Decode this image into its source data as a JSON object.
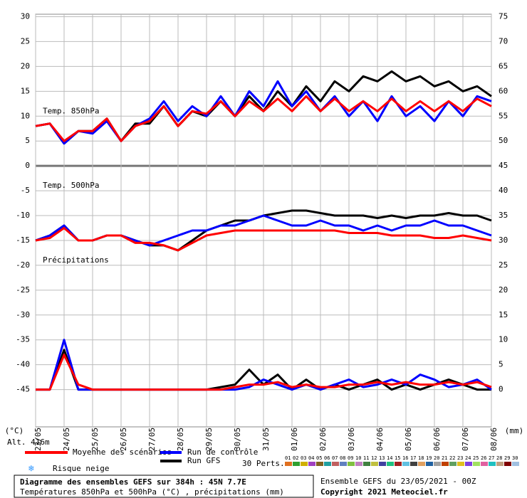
{
  "chart_data": {
    "type": "line",
    "x": [
      0,
      12,
      24,
      36,
      48,
      60,
      72,
      84,
      96,
      108,
      120,
      132,
      144,
      156,
      168,
      180,
      192,
      204,
      216,
      228,
      240,
      252,
      264,
      276,
      288,
      300,
      312,
      324,
      336,
      348,
      360,
      372,
      384
    ],
    "xlim": [
      0,
      384
    ],
    "xticks": [
      {
        "value": 0,
        "label": "23/05"
      },
      {
        "value": 24,
        "label": "24/05"
      },
      {
        "value": 48,
        "label": "25/05"
      },
      {
        "value": 72,
        "label": "26/05"
      },
      {
        "value": 96,
        "label": "27/05"
      },
      {
        "value": 120,
        "label": "28/05"
      },
      {
        "value": 144,
        "label": "29/05"
      },
      {
        "value": 168,
        "label": "30/05"
      },
      {
        "value": 192,
        "label": "31/05"
      },
      {
        "value": 216,
        "label": "01/06"
      },
      {
        "value": 240,
        "label": "02/06"
      },
      {
        "value": 264,
        "label": "03/06"
      },
      {
        "value": 288,
        "label": "04/06"
      },
      {
        "value": 312,
        "label": "05/06"
      },
      {
        "value": 336,
        "label": "06/06"
      },
      {
        "value": 360,
        "label": "07/06"
      },
      {
        "value": 384,
        "label": "08/06"
      }
    ],
    "ylim": [
      -52.5,
      30.5
    ],
    "yticks": [
      30,
      25,
      20,
      15,
      10,
      5,
      0,
      -5,
      -10,
      -15,
      -20,
      -25,
      -30,
      -35,
      -40,
      -45
    ],
    "y2lim": [
      -7.5,
      75.5
    ],
    "y2ticks": [
      75,
      70,
      65,
      60,
      55,
      50,
      45,
      40,
      35,
      30,
      25,
      20,
      15,
      10,
      5,
      0
    ],
    "grid": true,
    "ylabel": "(°C)",
    "y2label": "(mm)",
    "altitude": "Alt. 416m",
    "panels": [
      {
        "label": "Temp. 850hPa"
      },
      {
        "label": "Temp. 500hPa"
      },
      {
        "label": "Précipitations",
        "axis": "y2"
      }
    ],
    "series": [
      {
        "name": "Moyenne des scénarios",
        "color": "#ff0000",
        "values": [
          [
            8,
            8.5,
            5,
            7,
            7,
            9.5,
            5,
            8,
            9,
            12,
            8,
            11,
            10.5,
            13,
            10,
            13,
            11,
            13.5,
            11,
            14,
            11,
            13.5,
            11,
            13,
            11,
            13.5,
            11,
            13,
            11,
            13,
            11,
            13.5,
            12
          ],
          [
            -15,
            -14.5,
            -12.5,
            -15,
            -15,
            -14,
            -14,
            -15.5,
            -15.5,
            -16,
            -17,
            -15.5,
            -14,
            -13.5,
            -13,
            -13,
            -13,
            -13,
            -13,
            -13,
            -13,
            -13,
            -13.5,
            -13.5,
            -13.5,
            -14,
            -14,
            -14,
            -14.5,
            -14.5,
            -14,
            -14.5,
            -15
          ],
          [
            0,
            0,
            7,
            1,
            0,
            0,
            0,
            0,
            0,
            0,
            0,
            0,
            0,
            0,
            0.5,
            1,
            1,
            1.5,
            0.5,
            1,
            0.5,
            0.5,
            1,
            1,
            1.5,
            1,
            1.5,
            1,
            1,
            1.5,
            1,
            1.5,
            0.5
          ]
        ]
      },
      {
        "name": "Run de contrôle",
        "color": "#0000ff",
        "values": [
          [
            8,
            8.5,
            4.5,
            7,
            6.5,
            9,
            5,
            8,
            9.5,
            13,
            9,
            12,
            10,
            14,
            10,
            15,
            12,
            17,
            12,
            15,
            11,
            14,
            10,
            13,
            9,
            14,
            10,
            12,
            9,
            13,
            10,
            14,
            13
          ],
          [
            -15,
            -14,
            -12,
            -15,
            -15,
            -14,
            -14,
            -15,
            -16,
            -15,
            -14,
            -13,
            -13,
            -12,
            -12,
            -11,
            -10,
            -11,
            -12,
            -12,
            -11,
            -12,
            -12,
            -13,
            -12,
            -13,
            -12,
            -12,
            -11,
            -12,
            -12,
            -13,
            -14
          ],
          [
            0,
            0,
            10,
            0,
            0,
            0,
            0,
            0,
            0,
            0,
            0,
            0,
            0,
            0,
            0,
            0.5,
            2,
            1,
            0,
            1,
            0,
            1,
            2,
            0.5,
            1,
            2,
            1,
            3,
            2,
            0.5,
            1,
            2,
            0
          ]
        ]
      },
      {
        "name": "Run GFS",
        "color": "#000000",
        "values": [
          [
            8,
            8.5,
            4.5,
            7,
            7,
            9.5,
            5,
            8.5,
            8.5,
            12,
            8,
            11,
            10,
            13,
            10,
            14,
            11,
            15,
            12,
            16,
            13,
            17,
            15,
            18,
            17,
            19,
            17,
            18,
            16,
            17,
            15,
            16,
            14
          ],
          [
            -15,
            -14,
            -12,
            -15,
            -15,
            -14,
            -14,
            -15,
            -16,
            -16,
            -17,
            -15,
            -13,
            -12,
            -11,
            -11,
            -10,
            -9.5,
            -9,
            -9,
            -9.5,
            -10,
            -10,
            -10,
            -10.5,
            -10,
            -10.5,
            -10,
            -10,
            -9.5,
            -10,
            -10,
            -11
          ],
          [
            0,
            0,
            8,
            0,
            0,
            0,
            0,
            0,
            0,
            0,
            0,
            0,
            0,
            0.5,
            1,
            4,
            1,
            3,
            0,
            2,
            0,
            1,
            0,
            1,
            2,
            0,
            1,
            0,
            1,
            2,
            1,
            0,
            0
          ]
        ]
      }
    ],
    "snow_label": "Risque neige",
    "perts_label": "30 Perts.",
    "perturbations": [
      {
        "name": "01",
        "color": "#e07020"
      },
      {
        "name": "02",
        "color": "#30a030"
      },
      {
        "name": "03",
        "color": "#d0b000"
      },
      {
        "name": "04",
        "color": "#a040c0"
      },
      {
        "name": "05",
        "color": "#806020"
      },
      {
        "name": "06",
        "color": "#20a0a0"
      },
      {
        "name": "07",
        "color": "#c06060"
      },
      {
        "name": "08",
        "color": "#6080c0"
      },
      {
        "name": "09",
        "color": "#80c040"
      },
      {
        "name": "10",
        "color": "#c080c0"
      },
      {
        "name": "11",
        "color": "#408040"
      },
      {
        "name": "12",
        "color": "#c0c040"
      },
      {
        "name": "13",
        "color": "#4040a0"
      },
      {
        "name": "14",
        "color": "#20c080"
      },
      {
        "name": "15",
        "color": "#a02020"
      },
      {
        "name": "16",
        "color": "#60c0e0"
      },
      {
        "name": "17",
        "color": "#404040"
      },
      {
        "name": "18",
        "color": "#e0a060"
      },
      {
        "name": "19",
        "color": "#2060a0"
      },
      {
        "name": "20",
        "color": "#a0a0a0"
      },
      {
        "name": "21",
        "color": "#c04000"
      },
      {
        "name": "22",
        "color": "#60a060"
      },
      {
        "name": "23",
        "color": "#e0c020"
      },
      {
        "name": "24",
        "color": "#8040e0"
      },
      {
        "name": "25",
        "color": "#a0e060"
      },
      {
        "name": "26",
        "color": "#e060a0"
      },
      {
        "name": "27",
        "color": "#20c0c0"
      },
      {
        "name": "28",
        "color": "#c0a080"
      },
      {
        "name": "29",
        "color": "#800000"
      },
      {
        "name": "30",
        "color": "#a0c0e0"
      }
    ],
    "title": "Diagramme des ensembles GEFS sur 384h : 45N 7.7E",
    "subtitle": "Températures 850hPa et 500hPa (°C) , précipitations (mm)",
    "run_info": "Ensemble GEFS du 23/05/2021 - 00Z",
    "copyright": "Copyright 2021 Meteociel.fr"
  }
}
